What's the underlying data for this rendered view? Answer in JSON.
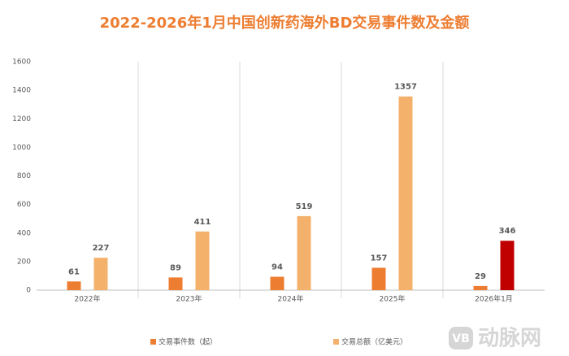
{
  "chart_data": {
    "type": "bar",
    "title": "2022-2026年1月中国创新药海外BD交易事件数及金额",
    "categories": [
      "2022年",
      "2023年",
      "2024年",
      "2025年",
      "2026年1月"
    ],
    "series": [
      {
        "name": "交易事件数（起）",
        "color": "#ed7d31",
        "values": [
          61,
          89,
          94,
          157,
          29
        ]
      },
      {
        "name": "交易总额（亿美元）",
        "color": "#f4b16c",
        "colors": [
          "#f4b16c",
          "#f4b16c",
          "#f4b16c",
          "#f4b16c",
          "#c00000"
        ],
        "values": [
          227,
          411,
          519,
          1357,
          346
        ]
      }
    ],
    "ylim": [
      0,
      1600
    ],
    "yticks": [
      0,
      200,
      400,
      600,
      800,
      1000,
      1200,
      1400,
      1600
    ],
    "grid": false,
    "category_separators": true,
    "legend": "bottom",
    "watermark_logo": "VB",
    "watermark": "动脉网"
  }
}
